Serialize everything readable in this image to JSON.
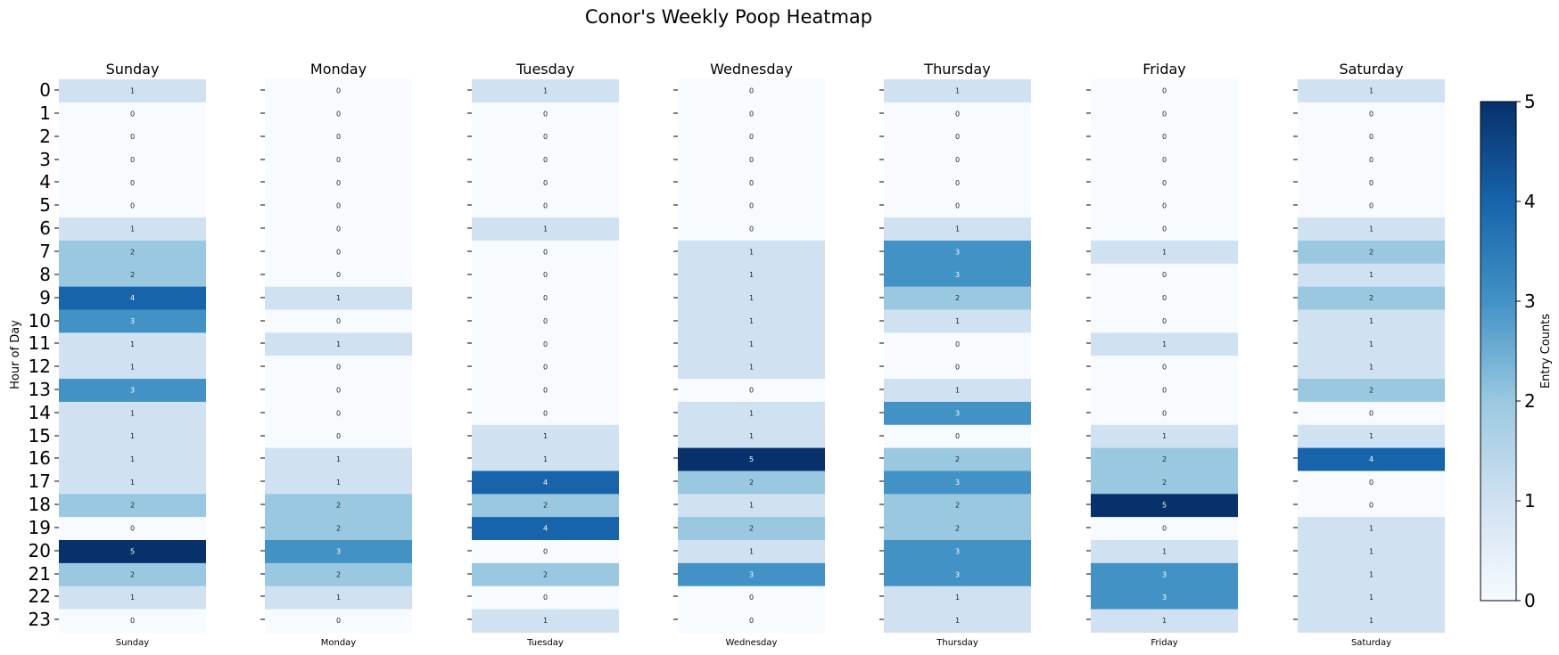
{
  "chart_data": {
    "type": "heatmap",
    "title": "Conor's Weekly Poop Heatmap",
    "ylabel": "Hour of Day",
    "colorbar_label": "Entry Counts",
    "colorbar_ticks": [
      "0",
      "1",
      "2",
      "3",
      "4",
      "5"
    ],
    "vmin": 0,
    "vmax": 5,
    "hours": [
      "0",
      "1",
      "2",
      "3",
      "4",
      "5",
      "6",
      "7",
      "8",
      "9",
      "10",
      "11",
      "12",
      "13",
      "14",
      "15",
      "16",
      "17",
      "18",
      "19",
      "20",
      "21",
      "22",
      "23"
    ],
    "days": [
      {
        "name": "Sunday",
        "values": [
          1,
          0,
          0,
          0,
          0,
          0,
          1,
          2,
          2,
          4,
          3,
          1,
          1,
          3,
          1,
          1,
          1,
          1,
          2,
          0,
          5,
          2,
          1,
          0
        ]
      },
      {
        "name": "Monday",
        "values": [
          0,
          0,
          0,
          0,
          0,
          0,
          0,
          0,
          0,
          1,
          0,
          1,
          0,
          0,
          0,
          0,
          1,
          1,
          2,
          2,
          3,
          2,
          1,
          0
        ]
      },
      {
        "name": "Tuesday",
        "values": [
          1,
          0,
          0,
          0,
          0,
          0,
          1,
          0,
          0,
          0,
          0,
          0,
          0,
          0,
          0,
          1,
          1,
          4,
          2,
          4,
          0,
          2,
          0,
          1
        ]
      },
      {
        "name": "Wednesday",
        "values": [
          0,
          0,
          0,
          0,
          0,
          0,
          0,
          1,
          1,
          1,
          1,
          1,
          1,
          0,
          1,
          1,
          5,
          2,
          1,
          2,
          1,
          3,
          0,
          0
        ]
      },
      {
        "name": "Thursday",
        "values": [
          1,
          0,
          0,
          0,
          0,
          0,
          1,
          3,
          3,
          2,
          1,
          0,
          0,
          1,
          3,
          0,
          2,
          3,
          2,
          2,
          3,
          3,
          1,
          1
        ]
      },
      {
        "name": "Friday",
        "values": [
          0,
          0,
          0,
          0,
          0,
          0,
          0,
          1,
          0,
          0,
          0,
          1,
          0,
          0,
          0,
          1,
          2,
          2,
          5,
          0,
          1,
          3,
          3,
          1
        ]
      },
      {
        "name": "Saturday",
        "values": [
          1,
          0,
          0,
          0,
          0,
          0,
          1,
          2,
          1,
          2,
          1,
          1,
          1,
          2,
          0,
          1,
          4,
          0,
          0,
          1,
          1,
          1,
          1,
          1
        ]
      }
    ],
    "colormap": [
      "#f7fbff",
      "#d0e1f2",
      "#9ac8e0",
      "#4292c6",
      "#1764ab",
      "#08306b"
    ]
  }
}
